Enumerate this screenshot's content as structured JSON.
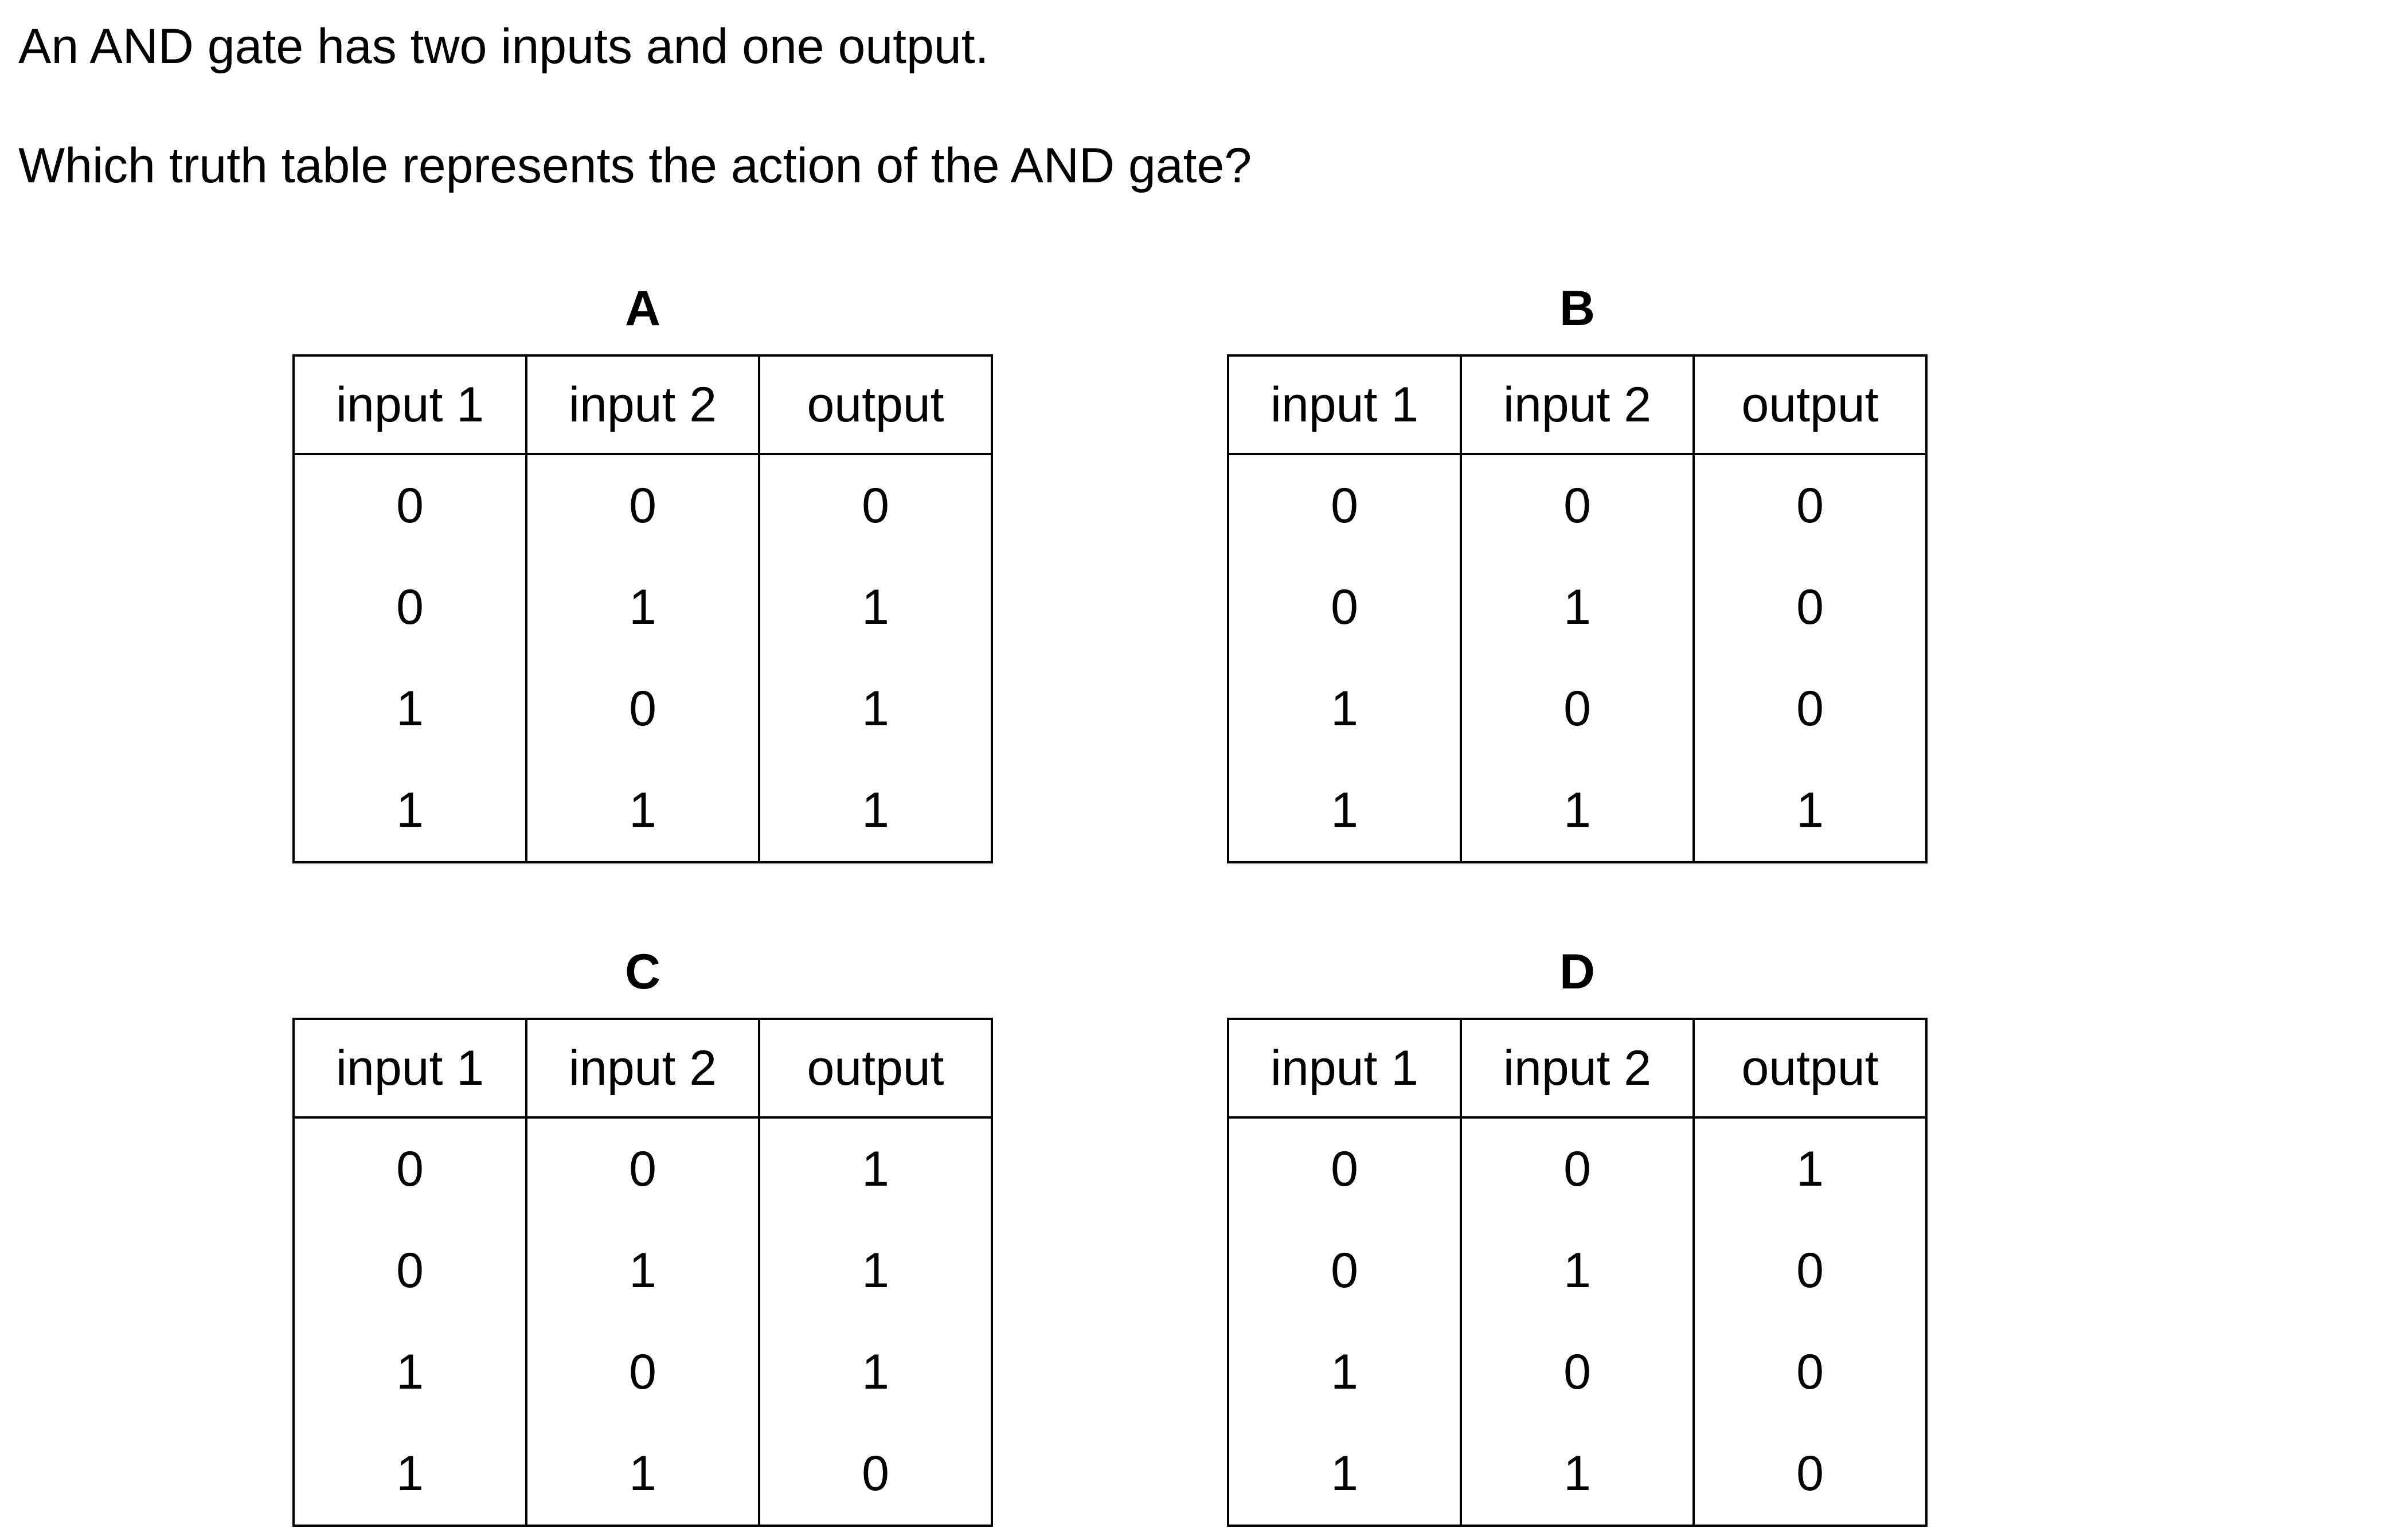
{
  "question": {
    "line1": "An AND gate has two inputs and one output.",
    "line2": "Which truth table represents the action of the AND gate?"
  },
  "headers": [
    "input 1",
    "input 2",
    "output"
  ],
  "options": [
    {
      "letter": "A",
      "rows": [
        [
          "0",
          "0",
          "0"
        ],
        [
          "0",
          "1",
          "1"
        ],
        [
          "1",
          "0",
          "1"
        ],
        [
          "1",
          "1",
          "1"
        ]
      ]
    },
    {
      "letter": "B",
      "rows": [
        [
          "0",
          "0",
          "0"
        ],
        [
          "0",
          "1",
          "0"
        ],
        [
          "1",
          "0",
          "0"
        ],
        [
          "1",
          "1",
          "1"
        ]
      ]
    },
    {
      "letter": "C",
      "rows": [
        [
          "0",
          "0",
          "1"
        ],
        [
          "0",
          "1",
          "1"
        ],
        [
          "1",
          "0",
          "1"
        ],
        [
          "1",
          "1",
          "0"
        ]
      ]
    },
    {
      "letter": "D",
      "rows": [
        [
          "0",
          "0",
          "1"
        ],
        [
          "0",
          "1",
          "0"
        ],
        [
          "1",
          "0",
          "0"
        ],
        [
          "1",
          "1",
          "0"
        ]
      ]
    }
  ]
}
